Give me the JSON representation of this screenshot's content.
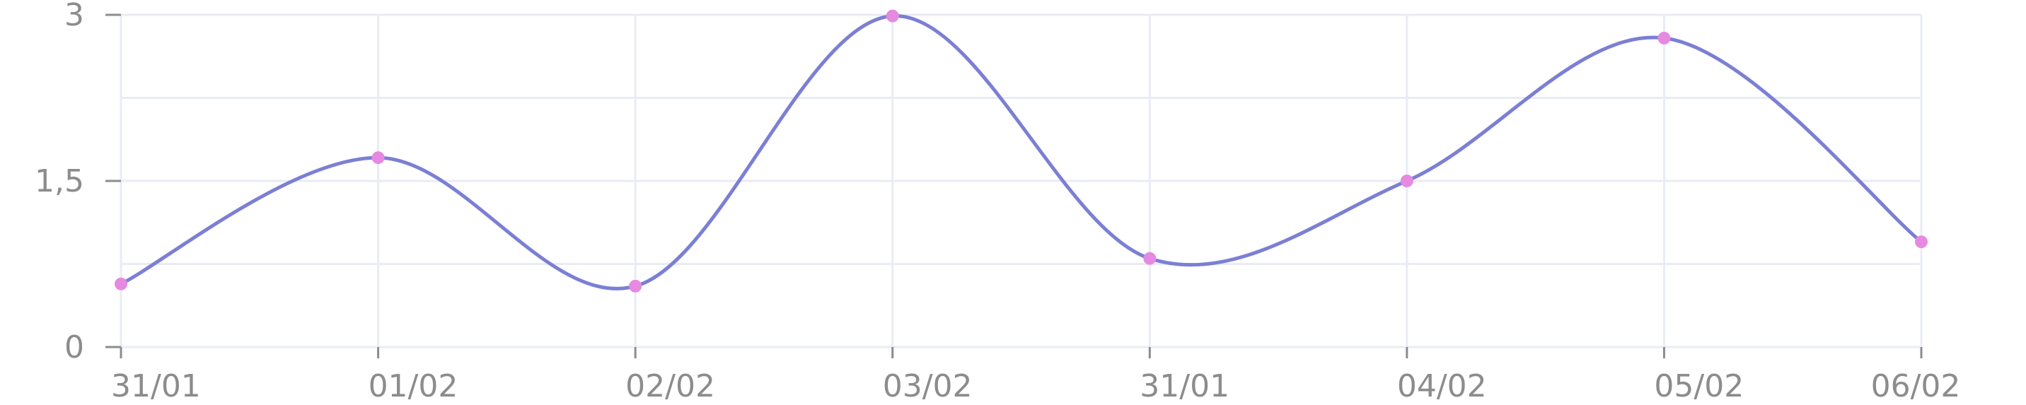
{
  "colors": {
    "line": "#7B7FD4",
    "point": "#E58AE0",
    "grid": "#E9ECF4",
    "axis": "#8C8C8C",
    "tick_text": "#8C8C8C",
    "background": "#FFFFFF"
  },
  "chart_data": {
    "type": "line",
    "title": "",
    "xlabel": "",
    "ylabel": "",
    "categories": [
      "31/01",
      "01/02",
      "02/02",
      "03/02",
      "31/01",
      "04/02",
      "05/02",
      "06/02"
    ],
    "series": [
      {
        "values": [
          0.57,
          1.71,
          0.55,
          2.99,
          0.8,
          1.5,
          2.79,
          0.95
        ]
      }
    ],
    "ylim": [
      0,
      3
    ],
    "y_ticks": [
      0,
      1.5,
      3
    ],
    "y_tick_labels": [
      "0",
      "1,5",
      "3"
    ],
    "grid": true,
    "legend": "none",
    "curve": "smooth"
  }
}
